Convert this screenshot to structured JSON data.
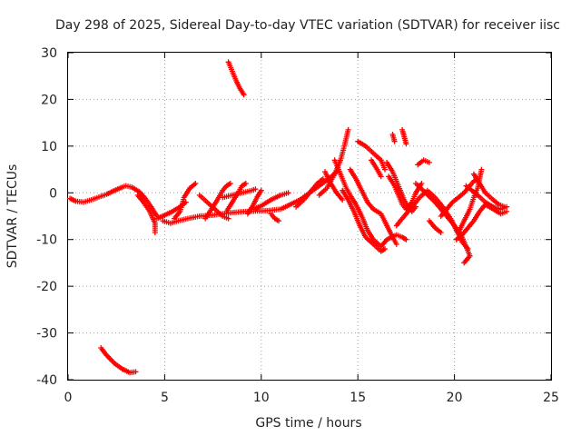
{
  "chart_data": {
    "type": "scatter",
    "title": "Day 298 of 2025, Sidereal Day-to-day VTEC variation (SDTVAR) for receiver iisc",
    "xlabel": "GPS time / hours",
    "ylabel": "SDTVAR / TECUs",
    "xlim": [
      0,
      25
    ],
    "ylim": [
      -40,
      30
    ],
    "xticks": [
      "0",
      "5",
      "10",
      "15",
      "20",
      "25"
    ],
    "yticks": [
      "-40",
      "-30",
      "-20",
      "-10",
      "0",
      "10",
      "20",
      "30"
    ],
    "grid": true,
    "marker": "+",
    "color": "#ff0000",
    "series": [
      {
        "name": "seg-main-a",
        "points": [
          [
            0.1,
            -1.2
          ],
          [
            0.4,
            -1.8
          ],
          [
            0.8,
            -2.0
          ],
          [
            1.2,
            -1.5
          ],
          [
            1.6,
            -0.9
          ],
          [
            2.0,
            -0.3
          ],
          [
            2.4,
            0.5
          ],
          [
            2.8,
            1.2
          ],
          [
            3.0,
            1.5
          ],
          [
            3.3,
            1.2
          ],
          [
            3.7,
            0.2
          ],
          [
            4.0,
            -1.2
          ],
          [
            4.3,
            -3.0
          ],
          [
            4.6,
            -5.0
          ]
        ]
      },
      {
        "name": "seg-main-b",
        "points": [
          [
            3.6,
            -0.5
          ],
          [
            3.9,
            -2.0
          ],
          [
            4.2,
            -3.8
          ],
          [
            4.5,
            -6.5
          ],
          [
            4.5,
            -8.5
          ]
        ]
      },
      {
        "name": "seg-main-c",
        "points": [
          [
            4.6,
            -5.5
          ],
          [
            5.0,
            -4.8
          ],
          [
            5.4,
            -4.0
          ],
          [
            5.8,
            -3.0
          ],
          [
            6.1,
            -2.0
          ]
        ]
      },
      {
        "name": "seg-main-d",
        "points": [
          [
            4.9,
            -6.0
          ],
          [
            5.3,
            -6.5
          ],
          [
            5.7,
            -6.0
          ],
          [
            6.2,
            -5.5
          ],
          [
            6.8,
            -5.0
          ],
          [
            7.4,
            -4.8
          ],
          [
            8.0,
            -4.5
          ],
          [
            8.6,
            -4.2
          ],
          [
            9.2,
            -4.0
          ],
          [
            9.8,
            -3.9
          ],
          [
            10.4,
            -3.8
          ],
          [
            11.0,
            -3.5
          ],
          [
            11.5,
            -2.5
          ],
          [
            12.0,
            -1.5
          ],
          [
            12.5,
            0.0
          ],
          [
            13.0,
            1.5
          ],
          [
            13.5,
            3.0
          ],
          [
            13.9,
            4.5
          ]
        ]
      },
      {
        "name": "seg-main-e",
        "points": [
          [
            5.5,
            -5.5
          ],
          [
            5.8,
            -4.0
          ],
          [
            6.0,
            -1.0
          ],
          [
            6.3,
            1.0
          ],
          [
            6.6,
            2.0
          ]
        ]
      },
      {
        "name": "seg-main-f",
        "points": [
          [
            7.1,
            -5.5
          ],
          [
            7.5,
            -3.0
          ],
          [
            7.8,
            -1.0
          ],
          [
            8.0,
            0.5
          ],
          [
            8.2,
            1.5
          ],
          [
            8.4,
            2.0
          ]
        ]
      },
      {
        "name": "seg-main-g",
        "points": [
          [
            6.8,
            -0.5
          ],
          [
            7.2,
            -2.0
          ],
          [
            7.6,
            -3.5
          ],
          [
            8.0,
            -5.0
          ],
          [
            8.3,
            -5.5
          ]
        ]
      },
      {
        "name": "seg-main-h",
        "points": [
          [
            8.0,
            -1.0
          ],
          [
            8.5,
            -0.5
          ],
          [
            9.0,
            0.0
          ],
          [
            9.5,
            0.5
          ],
          [
            9.7,
            0.8
          ]
        ]
      },
      {
        "name": "seg-main-i",
        "points": [
          [
            8.2,
            -4.0
          ],
          [
            8.5,
            -2.0
          ],
          [
            8.8,
            0.0
          ],
          [
            9.0,
            1.5
          ],
          [
            9.2,
            2.0
          ]
        ]
      },
      {
        "name": "seg-main-j",
        "points": [
          [
            9.3,
            -4.5
          ],
          [
            9.6,
            -2.5
          ],
          [
            9.8,
            -0.8
          ],
          [
            10.0,
            0.5
          ]
        ]
      },
      {
        "name": "seg-main-k",
        "points": [
          [
            9.6,
            -3.5
          ],
          [
            10.0,
            -2.8
          ],
          [
            10.5,
            -1.5
          ],
          [
            11.0,
            -0.5
          ],
          [
            11.4,
            0.0
          ]
        ]
      },
      {
        "name": "seg-main-l",
        "points": [
          [
            10.5,
            -4.5
          ],
          [
            10.7,
            -5.5
          ],
          [
            10.9,
            -6.0
          ]
        ]
      },
      {
        "name": "seg-main-m",
        "points": [
          [
            11.8,
            -3.0
          ],
          [
            12.2,
            -1.5
          ],
          [
            12.6,
            0.5
          ],
          [
            12.9,
            2.0
          ],
          [
            13.2,
            3.0
          ]
        ]
      },
      {
        "name": "seg-main-n",
        "points": [
          [
            13.0,
            -0.5
          ],
          [
            13.4,
            1.0
          ],
          [
            13.8,
            4.0
          ],
          [
            14.1,
            7.0
          ],
          [
            14.3,
            10.0
          ],
          [
            14.5,
            13.5
          ]
        ]
      },
      {
        "name": "seg-main-o",
        "points": [
          [
            13.3,
            4.5
          ],
          [
            13.6,
            2.0
          ],
          [
            13.9,
            0.0
          ],
          [
            14.2,
            -1.5
          ]
        ]
      },
      {
        "name": "seg-main-p",
        "points": [
          [
            13.8,
            7.0
          ],
          [
            14.0,
            5.0
          ],
          [
            14.2,
            3.0
          ],
          [
            14.4,
            1.0
          ],
          [
            14.6,
            -0.5
          ],
          [
            14.9,
            -2.5
          ],
          [
            15.2,
            -5.0
          ],
          [
            15.5,
            -8.0
          ],
          [
            15.8,
            -10.0
          ],
          [
            16.2,
            -11.5
          ],
          [
            16.5,
            -10.0
          ],
          [
            17.0,
            -9.0
          ],
          [
            17.3,
            -9.5
          ],
          [
            17.5,
            -10.0
          ]
        ]
      },
      {
        "name": "seg-main-q",
        "points": [
          [
            14.2,
            0.5
          ],
          [
            14.5,
            -1.5
          ],
          [
            14.8,
            -4.0
          ],
          [
            15.1,
            -7.0
          ],
          [
            15.4,
            -9.5
          ],
          [
            15.8,
            -11.0
          ],
          [
            16.2,
            -12.5
          ],
          [
            16.4,
            -12.0
          ]
        ]
      },
      {
        "name": "seg-main-r",
        "points": [
          [
            14.6,
            5.0
          ],
          [
            14.9,
            3.0
          ],
          [
            15.2,
            0.5
          ],
          [
            15.5,
            -2.0
          ],
          [
            15.8,
            -3.5
          ],
          [
            16.2,
            -4.5
          ],
          [
            16.5,
            -7.0
          ],
          [
            16.8,
            -9.5
          ],
          [
            17.0,
            -11.0
          ]
        ]
      },
      {
        "name": "seg-main-s",
        "points": [
          [
            15.0,
            11.0
          ],
          [
            15.4,
            10.0
          ],
          [
            15.8,
            8.5
          ],
          [
            16.2,
            7.0
          ],
          [
            16.4,
            5.0
          ]
        ]
      },
      {
        "name": "seg-main-t",
        "points": [
          [
            15.7,
            7.0
          ],
          [
            16.0,
            5.0
          ],
          [
            16.2,
            3.5
          ]
        ]
      },
      {
        "name": "seg-main-u",
        "points": [
          [
            16.5,
            6.5
          ],
          [
            16.8,
            4.5
          ],
          [
            17.0,
            2.5
          ],
          [
            17.2,
            0.5
          ],
          [
            17.4,
            -1.5
          ],
          [
            17.6,
            -3.0
          ],
          [
            17.8,
            -4.0
          ],
          [
            18.0,
            -3.0
          ]
        ]
      },
      {
        "name": "seg-main-v",
        "points": [
          [
            16.6,
            3.5
          ],
          [
            16.9,
            1.5
          ],
          [
            17.1,
            -0.5
          ],
          [
            17.3,
            -2.5
          ],
          [
            17.5,
            -3.5
          ],
          [
            17.8,
            -2.0
          ],
          [
            18.0,
            0.0
          ],
          [
            18.3,
            2.0
          ]
        ]
      },
      {
        "name": "seg-main-w",
        "points": [
          [
            17.0,
            -7.0
          ],
          [
            17.4,
            -5.0
          ],
          [
            17.8,
            -3.0
          ],
          [
            18.2,
            -1.0
          ],
          [
            18.6,
            0.5
          ],
          [
            19.0,
            -1.0
          ],
          [
            19.4,
            -3.0
          ],
          [
            19.8,
            -5.5
          ],
          [
            20.1,
            -8.0
          ],
          [
            20.4,
            -10.5
          ],
          [
            20.7,
            -12.0
          ]
        ]
      },
      {
        "name": "seg-main-x",
        "points": [
          [
            17.3,
            13.5
          ],
          [
            17.4,
            12.0
          ],
          [
            17.5,
            10.5
          ]
        ]
      },
      {
        "name": "seg-main-y",
        "points": [
          [
            16.8,
            12.5
          ],
          [
            16.9,
            11.0
          ]
        ]
      },
      {
        "name": "seg-main-z",
        "points": [
          [
            18.1,
            6.0
          ],
          [
            18.4,
            7.0
          ],
          [
            18.7,
            6.5
          ]
        ]
      },
      {
        "name": "seg-main-aa",
        "points": [
          [
            18.0,
            2.0
          ],
          [
            18.5,
            0.0
          ],
          [
            19.0,
            -2.0
          ],
          [
            19.5,
            -4.5
          ],
          [
            20.0,
            -7.0
          ],
          [
            20.4,
            -9.5
          ],
          [
            20.6,
            -11.5
          ],
          [
            20.8,
            -13.5
          ],
          [
            20.5,
            -15.0
          ]
        ]
      },
      {
        "name": "seg-main-ab",
        "points": [
          [
            18.7,
            -6.0
          ],
          [
            19.0,
            -7.5
          ],
          [
            19.3,
            -8.5
          ]
        ]
      },
      {
        "name": "seg-main-ac",
        "points": [
          [
            19.3,
            -5.0
          ],
          [
            19.6,
            -3.5
          ],
          [
            19.9,
            -2.0
          ],
          [
            20.2,
            -1.0
          ],
          [
            20.5,
            0.0
          ],
          [
            20.8,
            1.5
          ],
          [
            21.0,
            2.5
          ],
          [
            21.2,
            3.0
          ]
        ]
      },
      {
        "name": "seg-main-ad",
        "points": [
          [
            20.2,
            -8.5
          ],
          [
            20.5,
            -6.0
          ],
          [
            20.8,
            -3.5
          ],
          [
            21.0,
            -1.0
          ],
          [
            21.2,
            1.0
          ],
          [
            21.3,
            3.0
          ],
          [
            21.4,
            5.0
          ]
        ]
      },
      {
        "name": "seg-main-ae",
        "points": [
          [
            20.1,
            -10.0
          ],
          [
            20.4,
            -9.0
          ],
          [
            20.7,
            -7.5
          ],
          [
            21.0,
            -6.0
          ],
          [
            21.3,
            -4.0
          ],
          [
            21.6,
            -2.5
          ],
          [
            22.0,
            -3.5
          ],
          [
            22.4,
            -4.5
          ],
          [
            22.7,
            -4.0
          ]
        ]
      },
      {
        "name": "seg-main-af",
        "points": [
          [
            20.6,
            1.5
          ],
          [
            20.9,
            0.5
          ],
          [
            21.2,
            -0.5
          ],
          [
            21.6,
            -2.0
          ],
          [
            22.0,
            -3.0
          ],
          [
            22.4,
            -3.5
          ],
          [
            22.7,
            -3.0
          ]
        ]
      },
      {
        "name": "seg-main-ag",
        "points": [
          [
            21.0,
            4.0
          ],
          [
            21.3,
            2.0
          ],
          [
            21.6,
            0.0
          ],
          [
            22.0,
            -1.5
          ],
          [
            22.3,
            -2.5
          ],
          [
            22.6,
            -3.0
          ]
        ]
      },
      {
        "name": "seg-top",
        "points": [
          [
            8.3,
            28.0
          ],
          [
            8.5,
            26.0
          ],
          [
            8.7,
            24.0
          ],
          [
            8.9,
            22.3
          ],
          [
            9.1,
            21.0
          ]
        ]
      },
      {
        "name": "seg-bottom",
        "points": [
          [
            1.7,
            -33.2
          ],
          [
            2.0,
            -34.8
          ],
          [
            2.4,
            -36.5
          ],
          [
            2.8,
            -37.7
          ],
          [
            3.2,
            -38.5
          ],
          [
            3.5,
            -38.3
          ]
        ]
      }
    ]
  }
}
